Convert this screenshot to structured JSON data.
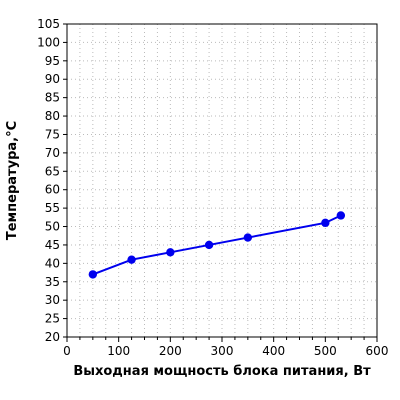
{
  "chart_data": {
    "type": "line",
    "title": "",
    "xlabel": "Выходная мощность блока питания, Вт",
    "ylabel": "Температура,°С",
    "xlim": [
      0,
      600
    ],
    "ylim": [
      20,
      105
    ],
    "x_ticks": [
      0,
      100,
      200,
      300,
      400,
      500,
      600
    ],
    "y_ticks": [
      20,
      25,
      30,
      35,
      40,
      45,
      50,
      55,
      60,
      65,
      70,
      75,
      80,
      85,
      90,
      95,
      100,
      105
    ],
    "grid": true,
    "legend": "none",
    "series": [
      {
        "color": "#0000ee",
        "x": [
          50,
          125,
          200,
          275,
          350,
          500,
          530
        ],
        "y": [
          37,
          41,
          43,
          45,
          47,
          51,
          53
        ]
      }
    ]
  }
}
